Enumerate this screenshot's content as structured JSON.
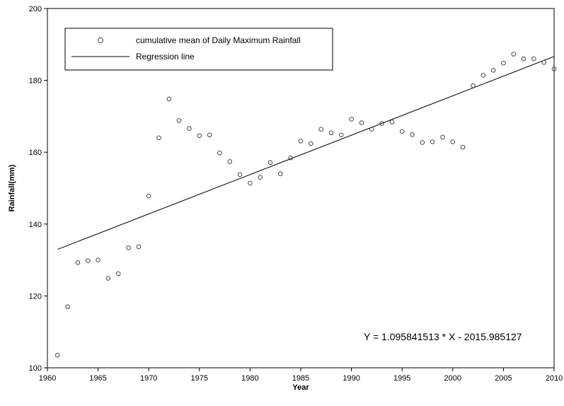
{
  "chart_data": {
    "type": "scatter",
    "xlabel": "Year",
    "ylabel": "Rainfall(mm)",
    "xlim": [
      1960,
      2010
    ],
    "ylim": [
      100,
      200
    ],
    "xticks": [
      1960,
      1965,
      1970,
      1975,
      1980,
      1985,
      1990,
      1995,
      2000,
      2005,
      2010
    ],
    "yticks": [
      100,
      120,
      140,
      160,
      180,
      200
    ],
    "legend_position": "top-left",
    "series": [
      {
        "name": "cumulative mean of Daily Maximum Rainfall",
        "marker": "open-circle",
        "x": [
          1961,
          1962,
          1963,
          1964,
          1965,
          1966,
          1967,
          1968,
          1969,
          1970,
          1971,
          1972,
          1973,
          1974,
          1975,
          1976,
          1977,
          1978,
          1979,
          1980,
          1981,
          1982,
          1983,
          1984,
          1985,
          1986,
          1987,
          1988,
          1989,
          1990,
          1991,
          1992,
          1993,
          1994,
          1995,
          1996,
          1997,
          1998,
          1999,
          2000,
          2001,
          2002,
          2003,
          2004,
          2005,
          2006,
          2007,
          2008,
          2009,
          2010
        ],
        "y": [
          103.5,
          117.0,
          129.3,
          129.8,
          130.0,
          124.9,
          126.2,
          133.4,
          133.7,
          147.8,
          164.0,
          174.8,
          168.8,
          166.6,
          164.6,
          164.8,
          159.8,
          157.4,
          153.8,
          151.4,
          153.0,
          157.1,
          154.0,
          158.4,
          163.1,
          162.4,
          166.4,
          165.4,
          164.8,
          169.2,
          168.2,
          166.4,
          168.0,
          168.4,
          165.8,
          164.9,
          162.7,
          162.9,
          164.2,
          162.9,
          161.4,
          178.5,
          181.4,
          182.8,
          184.8,
          187.3,
          186.0,
          186.0,
          185.0,
          183.2
        ]
      },
      {
        "name": "Regression line",
        "type": "line",
        "slope": 1.095841513,
        "intercept": -2015.985127,
        "x_range": [
          1961,
          2010
        ]
      }
    ],
    "annotations": [
      {
        "text": "Y = 1.095841513 * X - 2015.985127"
      }
    ]
  }
}
